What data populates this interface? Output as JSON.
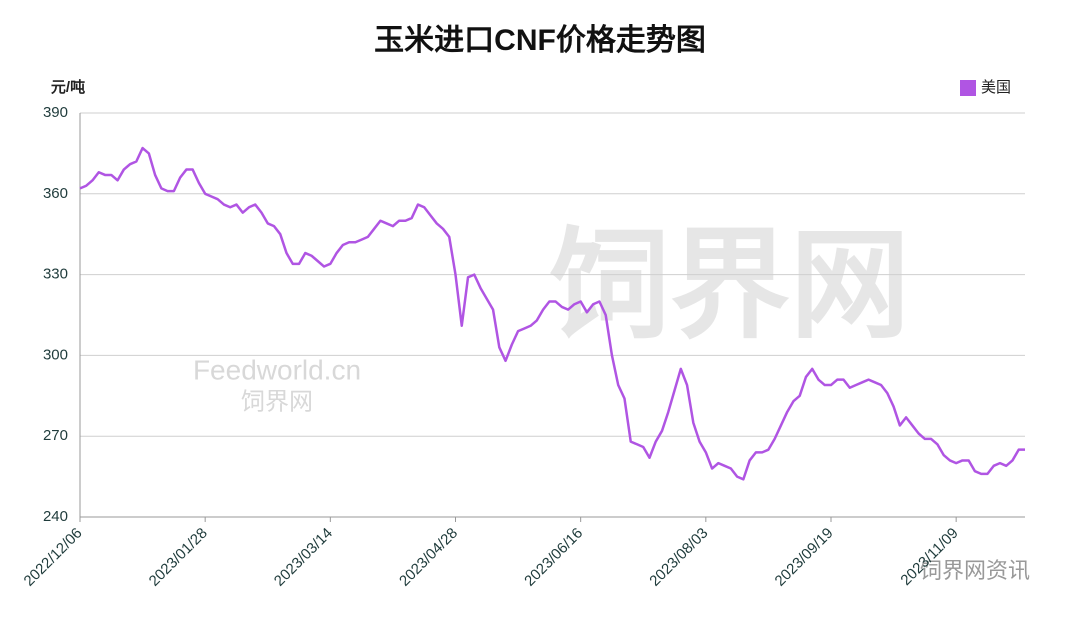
{
  "chart_data": {
    "type": "line",
    "title": "玉米进口CNF价格走势图",
    "y_label": "元/吨",
    "categories": [
      "2022/12/06",
      null,
      null,
      null,
      null,
      null,
      null,
      null,
      null,
      null,
      null,
      null,
      null,
      null,
      null,
      null,
      null,
      null,
      null,
      null,
      "2023/01/28",
      null,
      null,
      null,
      null,
      null,
      null,
      null,
      null,
      null,
      null,
      null,
      null,
      null,
      null,
      null,
      null,
      null,
      null,
      null,
      "2023/03/14",
      null,
      null,
      null,
      null,
      null,
      null,
      null,
      null,
      null,
      null,
      null,
      null,
      null,
      null,
      null,
      null,
      null,
      null,
      null,
      "2023/04/28",
      null,
      null,
      null,
      null,
      null,
      null,
      null,
      null,
      null,
      null,
      null,
      null,
      null,
      null,
      null,
      null,
      null,
      null,
      null,
      "2023/06/16",
      null,
      null,
      null,
      null,
      null,
      null,
      null,
      null,
      null,
      null,
      null,
      null,
      null,
      null,
      null,
      null,
      null,
      null,
      null,
      "2023/08/03",
      null,
      null,
      null,
      null,
      null,
      null,
      null,
      null,
      null,
      null,
      null,
      null,
      null,
      null,
      null,
      null,
      null,
      null,
      null,
      "2023/09/19",
      null,
      null,
      null,
      null,
      null,
      null,
      null,
      null,
      null,
      null,
      null,
      null,
      null,
      null,
      null,
      null,
      null,
      null,
      null,
      "2023/11/09",
      null,
      null,
      null,
      null,
      null,
      null,
      null,
      null,
      null,
      null,
      null
    ],
    "series": [
      {
        "name": "美国",
        "color": "#b055e3",
        "values": [
          362,
          363,
          365,
          368,
          367,
          367,
          365,
          369,
          371,
          372,
          377,
          375,
          367,
          362,
          361,
          361,
          366,
          369,
          369,
          364,
          360,
          359,
          358,
          356,
          355,
          356,
          353,
          355,
          356,
          353,
          349,
          348,
          345,
          338,
          334,
          334,
          338,
          337,
          335,
          333,
          334,
          338,
          341,
          342,
          342,
          343,
          344,
          347,
          350,
          349,
          348,
          350,
          350,
          351,
          356,
          355,
          352,
          349,
          347,
          344,
          330,
          311,
          329,
          330,
          325,
          321,
          317,
          303,
          298,
          304,
          309,
          310,
          311,
          313,
          317,
          320,
          320,
          318,
          317,
          319,
          320,
          316,
          319,
          320,
          315,
          300,
          289,
          284,
          268,
          267,
          266,
          262,
          268,
          272,
          279,
          287,
          295,
          289,
          275,
          268,
          264,
          258,
          260,
          259,
          258,
          255,
          254,
          261,
          264,
          264,
          265,
          269,
          274,
          279,
          283,
          285,
          292,
          295,
          291,
          289,
          289,
          291,
          291,
          288,
          289,
          290,
          291,
          290,
          289,
          286,
          281,
          274,
          277,
          274,
          271,
          269,
          269,
          267,
          263,
          261,
          260,
          261,
          261,
          257,
          256,
          256,
          259,
          260,
          259,
          261,
          265,
          265
        ]
      }
    ],
    "ylim": [
      240,
      390
    ],
    "yticks": [
      240,
      270,
      300,
      330,
      360,
      390
    ],
    "grid": true,
    "legend": "top-right",
    "watermarks": [
      "饲界网",
      "Feedworld.cn",
      "饲界网",
      "饲界网资讯"
    ]
  }
}
